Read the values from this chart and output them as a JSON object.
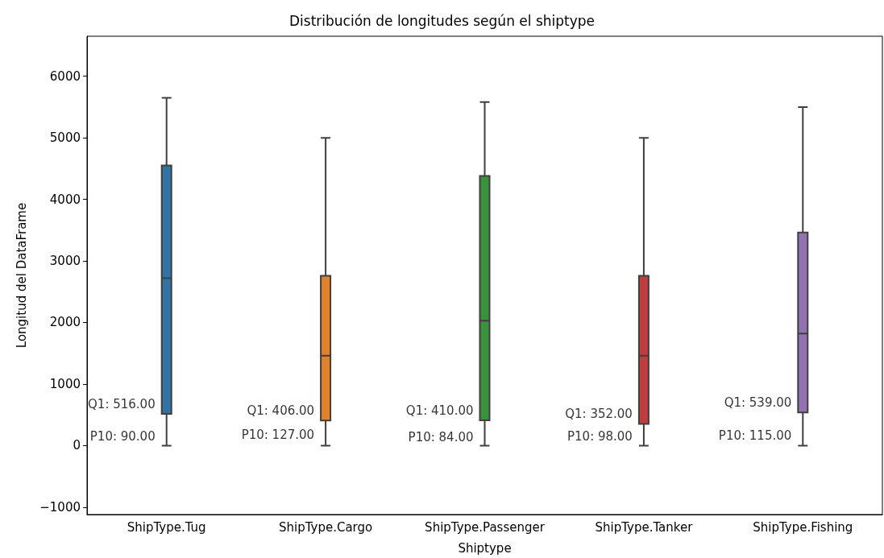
{
  "chart_data": {
    "type": "box",
    "title": "Distribución de longitudes según el shiptype",
    "xlabel": "Shiptype",
    "ylabel": "Longitud del DataFrame",
    "categories": [
      "ShipType.Tug",
      "ShipType.Cargo",
      "ShipType.Passenger",
      "ShipType.Tanker",
      "ShipType.Fishing"
    ],
    "colors": [
      "#3274a1",
      "#e1812c",
      "#3a923a",
      "#c03d3e",
      "#9372b2"
    ],
    "boxes": [
      {
        "low": 0,
        "q1": 516,
        "median": 2720,
        "q3": 4550,
        "high": 5650
      },
      {
        "low": 0,
        "q1": 406,
        "median": 1460,
        "q3": 2760,
        "high": 5000
      },
      {
        "low": 0,
        "q1": 410,
        "median": 2030,
        "q3": 4380,
        "high": 5580
      },
      {
        "low": 0,
        "q1": 352,
        "median": 1460,
        "q3": 2760,
        "high": 5000
      },
      {
        "low": 0,
        "q1": 539,
        "median": 1820,
        "q3": 3460,
        "high": 5500
      }
    ],
    "annotations": [
      {
        "text": "Q1: 516.00",
        "x": "ShipType.Tug",
        "y": 516
      },
      {
        "text": "P10: 90.00",
        "x": "ShipType.Tug",
        "y": 90
      },
      {
        "text": "Q1: 406.00",
        "x": "ShipType.Cargo",
        "y": 406
      },
      {
        "text": "P10: 127.00",
        "x": "ShipType.Cargo",
        "y": 127
      },
      {
        "text": "Q1: 410.00",
        "x": "ShipType.Passenger",
        "y": 410
      },
      {
        "text": "P10: 84.00",
        "x": "ShipType.Passenger",
        "y": 84
      },
      {
        "text": "Q1: 352.00",
        "x": "ShipType.Tanker",
        "y": 352
      },
      {
        "text": "P10: 98.00",
        "x": "ShipType.Tanker",
        "y": 98
      },
      {
        "text": "Q1: 539.00",
        "x": "ShipType.Fishing",
        "y": 539
      },
      {
        "text": "P10: 115.00",
        "x": "ShipType.Fishing",
        "y": 115
      }
    ],
    "ylim": [
      -1120,
      6650
    ],
    "yticks": [
      {
        "value": -1000,
        "label": "−1000"
      },
      0,
      1000,
      2000,
      3000,
      4000,
      5000,
      6000
    ],
    "grid": false
  }
}
